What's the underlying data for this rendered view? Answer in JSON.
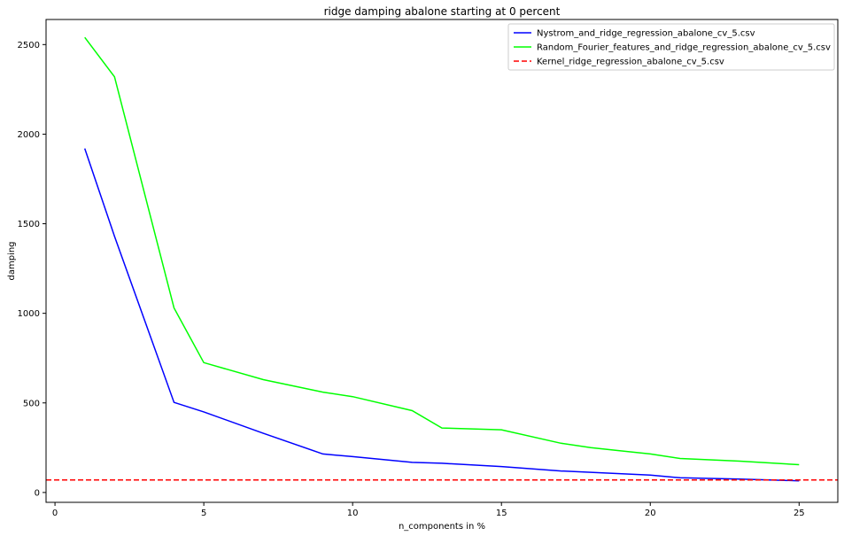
{
  "chart_data": {
    "type": "line",
    "title": "ridge damping abalone starting at 0 percent",
    "xlabel": "n_components in %",
    "ylabel": "damping",
    "xlim": [
      -0.3,
      26.3
    ],
    "ylim": [
      -55,
      2640
    ],
    "xticks": [
      0,
      5,
      10,
      15,
      20,
      25
    ],
    "yticks": [
      0,
      500,
      1000,
      1500,
      2000,
      2500
    ],
    "grid": false,
    "legend_position": "top-right",
    "series": [
      {
        "name": "Nystrom_and_ridge_regression_abalone_cv_5.csv",
        "color": "#0000ff",
        "style": "solid",
        "x": [
          1,
          2,
          4,
          5,
          7,
          9,
          10,
          12,
          13,
          15,
          17,
          20,
          21,
          23,
          25
        ],
        "y": [
          1920,
          1430,
          503,
          450,
          330,
          215,
          200,
          168,
          163,
          145,
          120,
          97,
          82,
          75,
          65
        ]
      },
      {
        "name": "Random_Fourier_features_and_ridge_regression_abalone_cv_5.csv",
        "color": "#00ff00",
        "style": "solid",
        "x": [
          1,
          2,
          4,
          5,
          7,
          9,
          10,
          12,
          13,
          15,
          17,
          18,
          20,
          21,
          23,
          25
        ],
        "y": [
          2540,
          2320,
          1030,
          725,
          630,
          560,
          535,
          457,
          360,
          350,
          275,
          250,
          215,
          190,
          175,
          155
        ]
      },
      {
        "name": "Kernel_ridge_regression_abalone_cv_5.csv",
        "color": "#ff0000",
        "style": "dashed",
        "hline": 70
      }
    ]
  }
}
